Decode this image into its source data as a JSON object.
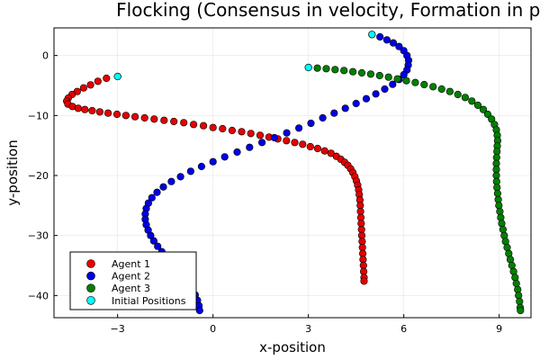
{
  "chart_data": {
    "type": "scatter",
    "title": "Flocking (Consensus in velocity, Formation in position",
    "xlabel": "x-position",
    "ylabel": "y-position",
    "xlim": [
      -5.0,
      10.0
    ],
    "ylim": [
      -43.7,
      4.6
    ],
    "xticks": [
      -3,
      0,
      3,
      6,
      9
    ],
    "yticks": [
      -40,
      -30,
      -20,
      -10,
      0
    ],
    "grid": true,
    "legend_position": "bottom-left",
    "series": [
      {
        "name": "Agent 1",
        "color": "#e50000",
        "points": [
          [
            -3.0,
            -3.5
          ],
          [
            -3.35,
            -3.8
          ],
          [
            -3.62,
            -4.3
          ],
          [
            -3.85,
            -4.9
          ],
          [
            -4.07,
            -5.4
          ],
          [
            -4.27,
            -6.0
          ],
          [
            -4.43,
            -6.5
          ],
          [
            -4.55,
            -7.1
          ],
          [
            -4.6,
            -7.6
          ],
          [
            -4.56,
            -8.1
          ],
          [
            -4.42,
            -8.5
          ],
          [
            -4.24,
            -8.8
          ],
          [
            -4.03,
            -9.0
          ],
          [
            -3.8,
            -9.2
          ],
          [
            -3.56,
            -9.4
          ],
          [
            -3.3,
            -9.6
          ],
          [
            -3.02,
            -9.8
          ],
          [
            -2.74,
            -10.0
          ],
          [
            -2.45,
            -10.2
          ],
          [
            -2.15,
            -10.4
          ],
          [
            -1.85,
            -10.6
          ],
          [
            -1.54,
            -10.8
          ],
          [
            -1.23,
            -11.0
          ],
          [
            -0.92,
            -11.2
          ],
          [
            -0.61,
            -11.5
          ],
          [
            -0.3,
            -11.7
          ],
          [
            0.0,
            -12.0
          ],
          [
            0.3,
            -12.2
          ],
          [
            0.6,
            -12.5
          ],
          [
            0.9,
            -12.7
          ],
          [
            1.19,
            -13.0
          ],
          [
            1.48,
            -13.3
          ],
          [
            1.76,
            -13.6
          ],
          [
            2.04,
            -13.9
          ],
          [
            2.31,
            -14.2
          ],
          [
            2.57,
            -14.5
          ],
          [
            2.82,
            -14.8
          ],
          [
            3.06,
            -15.2
          ],
          [
            3.29,
            -15.5
          ],
          [
            3.51,
            -15.9
          ],
          [
            3.71,
            -16.3
          ],
          [
            3.88,
            -16.8
          ],
          [
            4.02,
            -17.3
          ],
          [
            4.14,
            -17.8
          ],
          [
            4.24,
            -18.3
          ],
          [
            4.33,
            -18.9
          ],
          [
            4.4,
            -19.5
          ],
          [
            4.46,
            -20.2
          ],
          [
            4.51,
            -20.9
          ],
          [
            4.55,
            -21.6
          ],
          [
            4.58,
            -22.4
          ],
          [
            4.6,
            -23.2
          ],
          [
            4.62,
            -24.1
          ],
          [
            4.63,
            -25.0
          ],
          [
            4.64,
            -26.0
          ],
          [
            4.65,
            -27.0
          ],
          [
            4.66,
            -28.0
          ],
          [
            4.67,
            -29.0
          ],
          [
            4.68,
            -30.0
          ],
          [
            4.69,
            -31.0
          ],
          [
            4.7,
            -32.0
          ],
          [
            4.71,
            -33.0
          ],
          [
            4.72,
            -34.0
          ],
          [
            4.73,
            -35.0
          ],
          [
            4.74,
            -36.0
          ],
          [
            4.75,
            -37.0
          ],
          [
            4.75,
            -37.6
          ]
        ]
      },
      {
        "name": "Agent 2",
        "color": "#0000e5",
        "points": [
          [
            5.0,
            3.5
          ],
          [
            5.25,
            3.1
          ],
          [
            5.47,
            2.6
          ],
          [
            5.67,
            2.1
          ],
          [
            5.85,
            1.5
          ],
          [
            6.0,
            0.8
          ],
          [
            6.1,
            0.0
          ],
          [
            6.15,
            -0.8
          ],
          [
            6.14,
            -1.6
          ],
          [
            6.1,
            -2.4
          ],
          [
            6.0,
            -3.2
          ],
          [
            5.85,
            -4.0
          ],
          [
            5.65,
            -4.8
          ],
          [
            5.4,
            -5.6
          ],
          [
            5.12,
            -6.4
          ],
          [
            4.82,
            -7.2
          ],
          [
            4.5,
            -8.0
          ],
          [
            4.16,
            -8.8
          ],
          [
            3.81,
            -9.6
          ],
          [
            3.45,
            -10.4
          ],
          [
            3.08,
            -11.3
          ],
          [
            2.7,
            -12.1
          ],
          [
            2.32,
            -12.9
          ],
          [
            1.93,
            -13.7
          ],
          [
            1.54,
            -14.5
          ],
          [
            1.15,
            -15.3
          ],
          [
            0.76,
            -16.1
          ],
          [
            0.37,
            -16.9
          ],
          [
            0.0,
            -17.7
          ],
          [
            -0.36,
            -18.5
          ],
          [
            -0.7,
            -19.3
          ],
          [
            -1.02,
            -20.2
          ],
          [
            -1.31,
            -21.0
          ],
          [
            -1.56,
            -21.9
          ],
          [
            -1.76,
            -22.8
          ],
          [
            -1.92,
            -23.7
          ],
          [
            -2.03,
            -24.6
          ],
          [
            -2.1,
            -25.5
          ],
          [
            -2.13,
            -26.4
          ],
          [
            -2.13,
            -27.3
          ],
          [
            -2.1,
            -28.2
          ],
          [
            -2.04,
            -29.1
          ],
          [
            -1.96,
            -30.0
          ],
          [
            -1.86,
            -30.9
          ],
          [
            -1.74,
            -31.8
          ],
          [
            -1.61,
            -32.7
          ],
          [
            -1.47,
            -33.6
          ],
          [
            -1.32,
            -34.5
          ],
          [
            -1.17,
            -35.4
          ],
          [
            -1.02,
            -36.3
          ],
          [
            -0.88,
            -37.2
          ],
          [
            -0.76,
            -38.1
          ],
          [
            -0.65,
            -39.0
          ],
          [
            -0.56,
            -39.9
          ],
          [
            -0.49,
            -40.8
          ],
          [
            -0.44,
            -41.7
          ],
          [
            -0.42,
            -42.5
          ]
        ]
      },
      {
        "name": "Agent 3",
        "color": "#008000",
        "points": [
          [
            3.0,
            -2.0
          ],
          [
            3.28,
            -2.1
          ],
          [
            3.56,
            -2.2
          ],
          [
            3.84,
            -2.35
          ],
          [
            4.12,
            -2.5
          ],
          [
            4.4,
            -2.7
          ],
          [
            4.68,
            -2.9
          ],
          [
            4.96,
            -3.1
          ],
          [
            5.24,
            -3.35
          ],
          [
            5.52,
            -3.6
          ],
          [
            5.8,
            -3.9
          ],
          [
            6.08,
            -4.2
          ],
          [
            6.36,
            -4.5
          ],
          [
            6.64,
            -4.85
          ],
          [
            6.92,
            -5.2
          ],
          [
            7.19,
            -5.6
          ],
          [
            7.45,
            -6.0
          ],
          [
            7.7,
            -6.5
          ],
          [
            7.93,
            -7.0
          ],
          [
            8.14,
            -7.6
          ],
          [
            8.33,
            -8.3
          ],
          [
            8.5,
            -9.0
          ],
          [
            8.64,
            -9.8
          ],
          [
            8.76,
            -10.6
          ],
          [
            8.85,
            -11.5
          ],
          [
            8.91,
            -12.4
          ],
          [
            8.94,
            -13.3
          ],
          [
            8.95,
            -14.2
          ],
          [
            8.94,
            -15.1
          ],
          [
            8.93,
            -16.0
          ],
          [
            8.92,
            -17.0
          ],
          [
            8.91,
            -18.0
          ],
          [
            8.91,
            -19.0
          ],
          [
            8.91,
            -20.0
          ],
          [
            8.92,
            -21.0
          ],
          [
            8.93,
            -22.0
          ],
          [
            8.95,
            -23.0
          ],
          [
            8.97,
            -24.0
          ],
          [
            8.99,
            -25.0
          ],
          [
            9.02,
            -26.0
          ],
          [
            9.05,
            -27.0
          ],
          [
            9.08,
            -28.0
          ],
          [
            9.12,
            -29.0
          ],
          [
            9.16,
            -30.0
          ],
          [
            9.2,
            -31.0
          ],
          [
            9.25,
            -32.0
          ],
          [
            9.3,
            -33.0
          ],
          [
            9.35,
            -34.0
          ],
          [
            9.4,
            -35.0
          ],
          [
            9.45,
            -36.0
          ],
          [
            9.5,
            -37.0
          ],
          [
            9.54,
            -38.0
          ],
          [
            9.58,
            -39.0
          ],
          [
            9.61,
            -40.0
          ],
          [
            9.64,
            -41.0
          ],
          [
            9.66,
            -42.0
          ],
          [
            9.67,
            -42.5
          ]
        ]
      },
      {
        "name": "Initial Positions",
        "color": "#00ffff",
        "points": [
          [
            -3.0,
            -3.5
          ],
          [
            5.0,
            3.5
          ],
          [
            3.0,
            -2.0
          ]
        ]
      }
    ]
  }
}
